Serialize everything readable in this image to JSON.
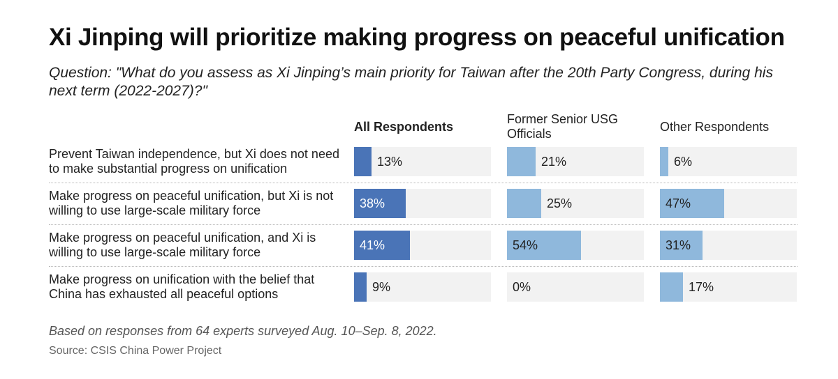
{
  "title": "Xi Jinping will prioritize making progress on peaceful unification",
  "subtitle": "Question: \"What do you assess as Xi Jinping’s main priority for Taiwan after the 20th Party Congress, during his next term (2022-2027)?\"",
  "note": "Based on responses from 64 experts surveyed Aug. 10–Sep. 8, 2022.",
  "source": "Source: CSIS China Power Project",
  "colors": {
    "all_respondents_bar": "#4a74b7",
    "other_groups_bar": "#8fb8dc",
    "track": "#f2f2f2"
  },
  "chart_data": {
    "type": "bar",
    "orientation": "horizontal",
    "xlim": [
      0,
      100
    ],
    "unit": "%",
    "categories": [
      "Prevent Taiwan independence, but Xi does not need to make substantial progress on unification",
      "Make progress on peaceful unification, but Xi is not willing to use large-scale military force",
      "Make progress on peaceful unification, and Xi is willing to use large-scale military force",
      "Make progress on unification with the belief that China has exhausted all peaceful options"
    ],
    "series": [
      {
        "name": "All Respondents",
        "values": [
          13,
          38,
          41,
          9
        ],
        "labels": [
          "13%",
          "38%",
          "41%",
          "9%"
        ]
      },
      {
        "name": "Former Senior USG Officials",
        "values": [
          21,
          25,
          54,
          0
        ],
        "labels": [
          "21%",
          "25%",
          "54%",
          "0%"
        ]
      },
      {
        "name": "Other Respondents",
        "values": [
          6,
          47,
          31,
          17
        ],
        "labels": [
          "6%",
          "47%",
          "31%",
          "17%"
        ]
      }
    ]
  }
}
